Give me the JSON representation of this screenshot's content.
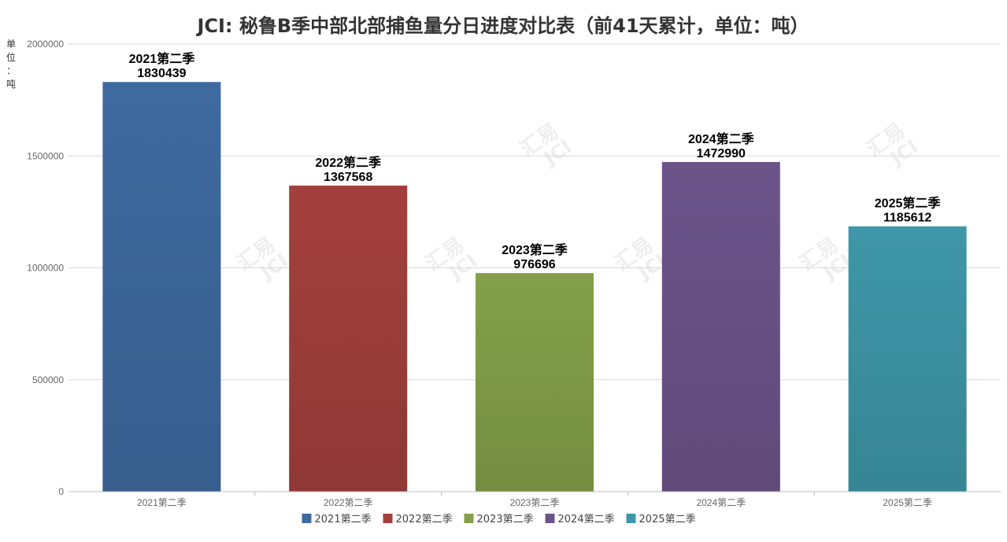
{
  "chart_data": {
    "type": "bar",
    "title": "JCI: 秘鲁B季中部北部捕鱼量分日进度对比表（前41天累计，单位：吨）",
    "ylabel": "单位：吨",
    "categories": [
      "2021第二季",
      "2022第二季",
      "2023第二季",
      "2024第二季",
      "2025第二季"
    ],
    "values": [
      1830439,
      1367568,
      976696,
      1472990,
      1185612
    ],
    "colors": [
      "#3f6aa0",
      "#a3403d",
      "#84a04a",
      "#6c548a",
      "#3e97a8"
    ],
    "ylim": [
      0,
      2000000
    ],
    "yticks": [
      0,
      500000,
      1000000,
      1500000,
      2000000
    ],
    "grid": true,
    "legend_position": "bottom"
  },
  "watermark": {
    "text_cn": "汇易",
    "text_en": "JCI"
  }
}
